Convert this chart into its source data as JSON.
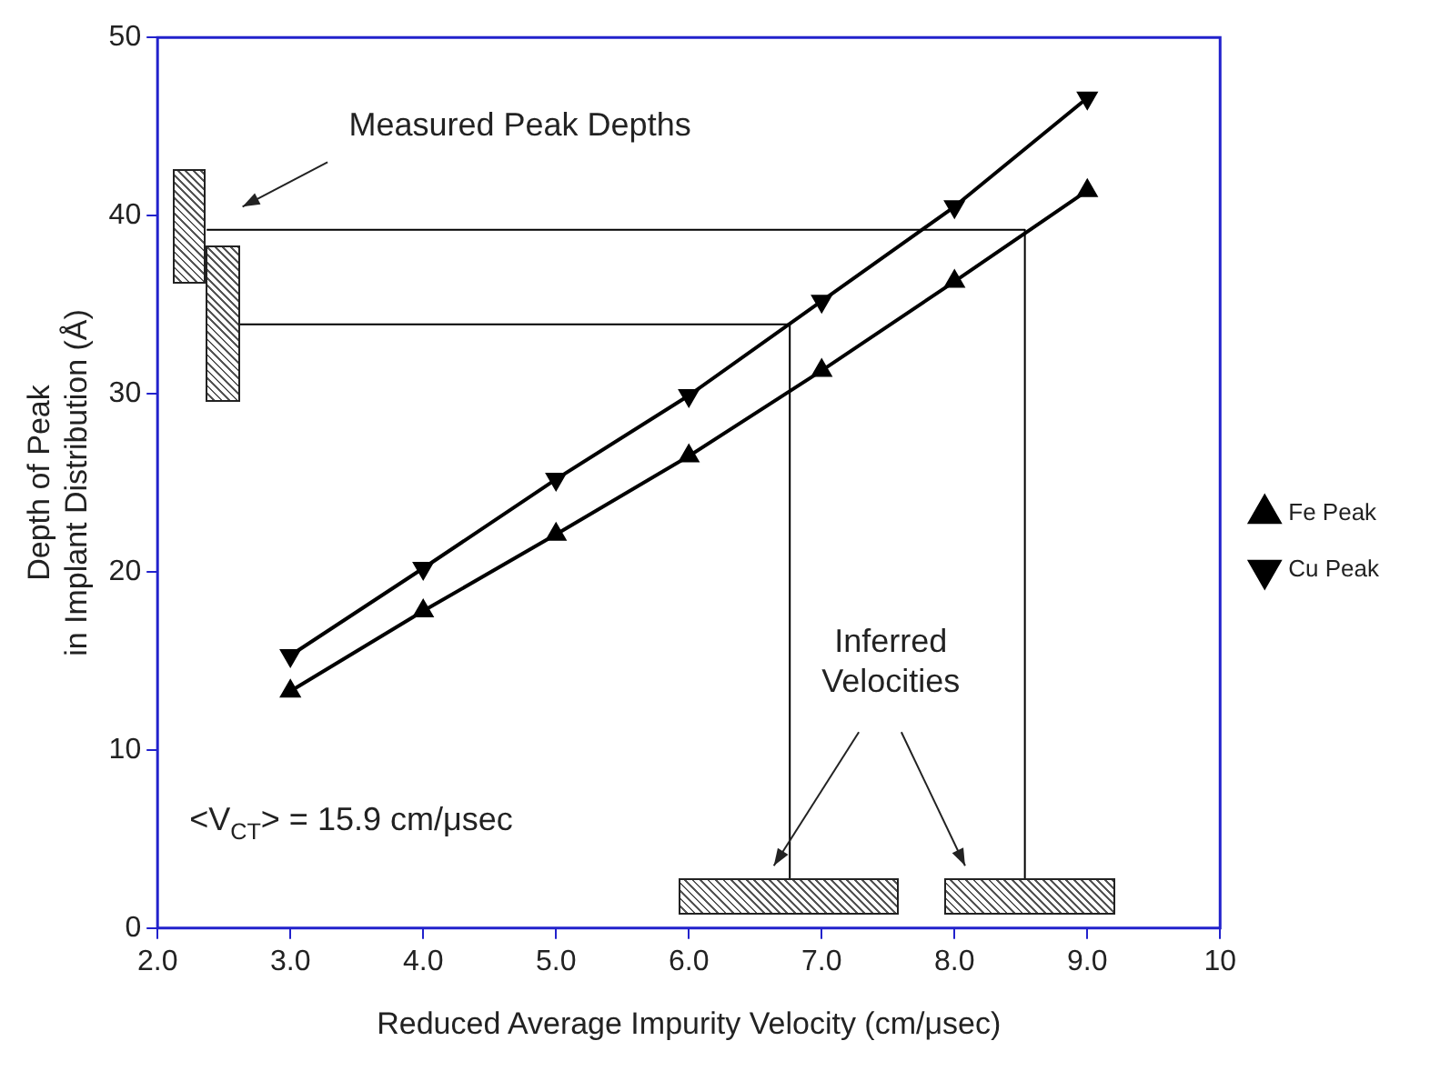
{
  "chart_data": {
    "type": "line",
    "xlabel": "Reduced Average Impurity Velocity (cm/μsec)",
    "ylabel": "Depth of Peak\nin Implant Distribution (Å)",
    "xlim": [
      2,
      10
    ],
    "xticks": [
      {
        "value": 2,
        "label": "2.0"
      },
      {
        "value": 3,
        "label": "3.0"
      },
      {
        "value": 4,
        "label": "4.0"
      },
      {
        "value": 5,
        "label": "5.0"
      },
      {
        "value": 6,
        "label": "6.0"
      },
      {
        "value": 7,
        "label": "7.0"
      },
      {
        "value": 8,
        "label": "8.0"
      },
      {
        "value": 9,
        "label": "9.0"
      },
      10
    ],
    "ylim": [
      0,
      50
    ],
    "yticks": [
      0,
      10,
      20,
      30,
      40,
      50
    ],
    "grid": false,
    "legend": "right",
    "line_style": "solid",
    "series": [
      {
        "name": "Fe Peak",
        "color": "#000000",
        "marker": "triangle",
        "x": [
          3,
          4,
          5,
          6,
          7,
          8,
          9
        ],
        "values": [
          13.3,
          17.8,
          22.1,
          26.5,
          31.3,
          36.3,
          41.4
        ]
      },
      {
        "name": "Cu Peak",
        "color": "#000000",
        "marker": "triangle",
        "x": [
          3,
          4,
          5,
          6,
          7,
          8,
          9
        ],
        "values": [
          15.3,
          20.2,
          25.2,
          29.9,
          35.2,
          40.5,
          46.6
        ]
      },
      {
        "color": "#000000",
        "marker": "none",
        "x": [
          2.37,
          8.53,
          8.53
        ],
        "values": [
          39.2,
          39.2,
          2.8
        ]
      },
      {
        "color": "#000000",
        "marker": "none",
        "x": [
          2.62,
          6.76,
          6.76
        ],
        "values": [
          33.9,
          33.9,
          2.8
        ]
      }
    ],
    "annotations": [
      "Measured Peak Depths",
      "Inferred\nVelocities",
      "<V$_{CT}$> = 15.9 cm/μsec"
    ]
  }
}
